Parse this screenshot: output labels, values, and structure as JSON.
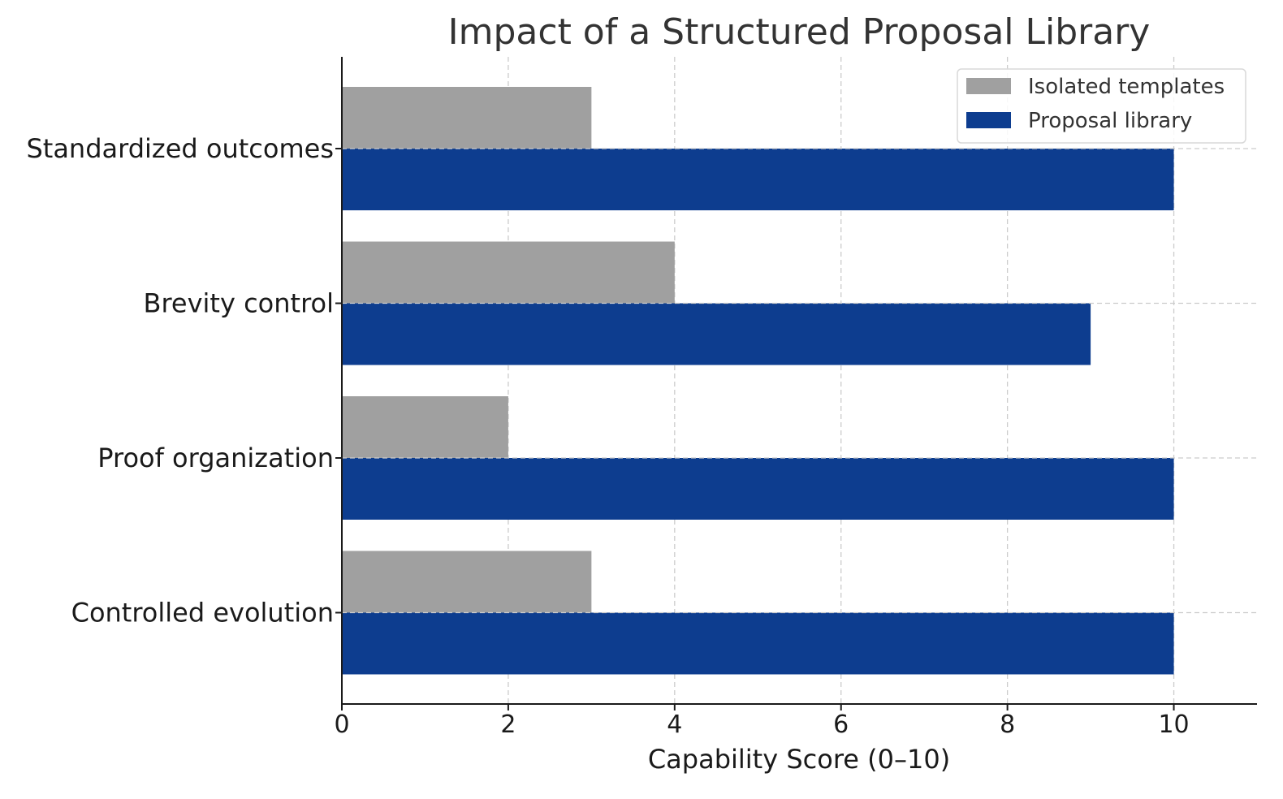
{
  "chart_data": {
    "type": "bar",
    "orientation": "horizontal",
    "title": "Impact of a Structured Proposal Library",
    "xlabel": "Capability Score (0–10)",
    "ylabel": "",
    "categories": [
      "Standardized outcomes",
      "Brevity control",
      "Proof organization",
      "Controlled evolution"
    ],
    "series": [
      {
        "name": "Isolated templates",
        "color": "#a0a0a0",
        "values": [
          3,
          4,
          2,
          3
        ]
      },
      {
        "name": "Proposal library",
        "color": "#0d3d8f",
        "values": [
          10,
          9,
          10,
          10
        ]
      }
    ],
    "xlim": [
      0,
      11
    ],
    "xticks": [
      0,
      2,
      4,
      6,
      8,
      10
    ],
    "grid": true,
    "legend_position": "top-right"
  }
}
